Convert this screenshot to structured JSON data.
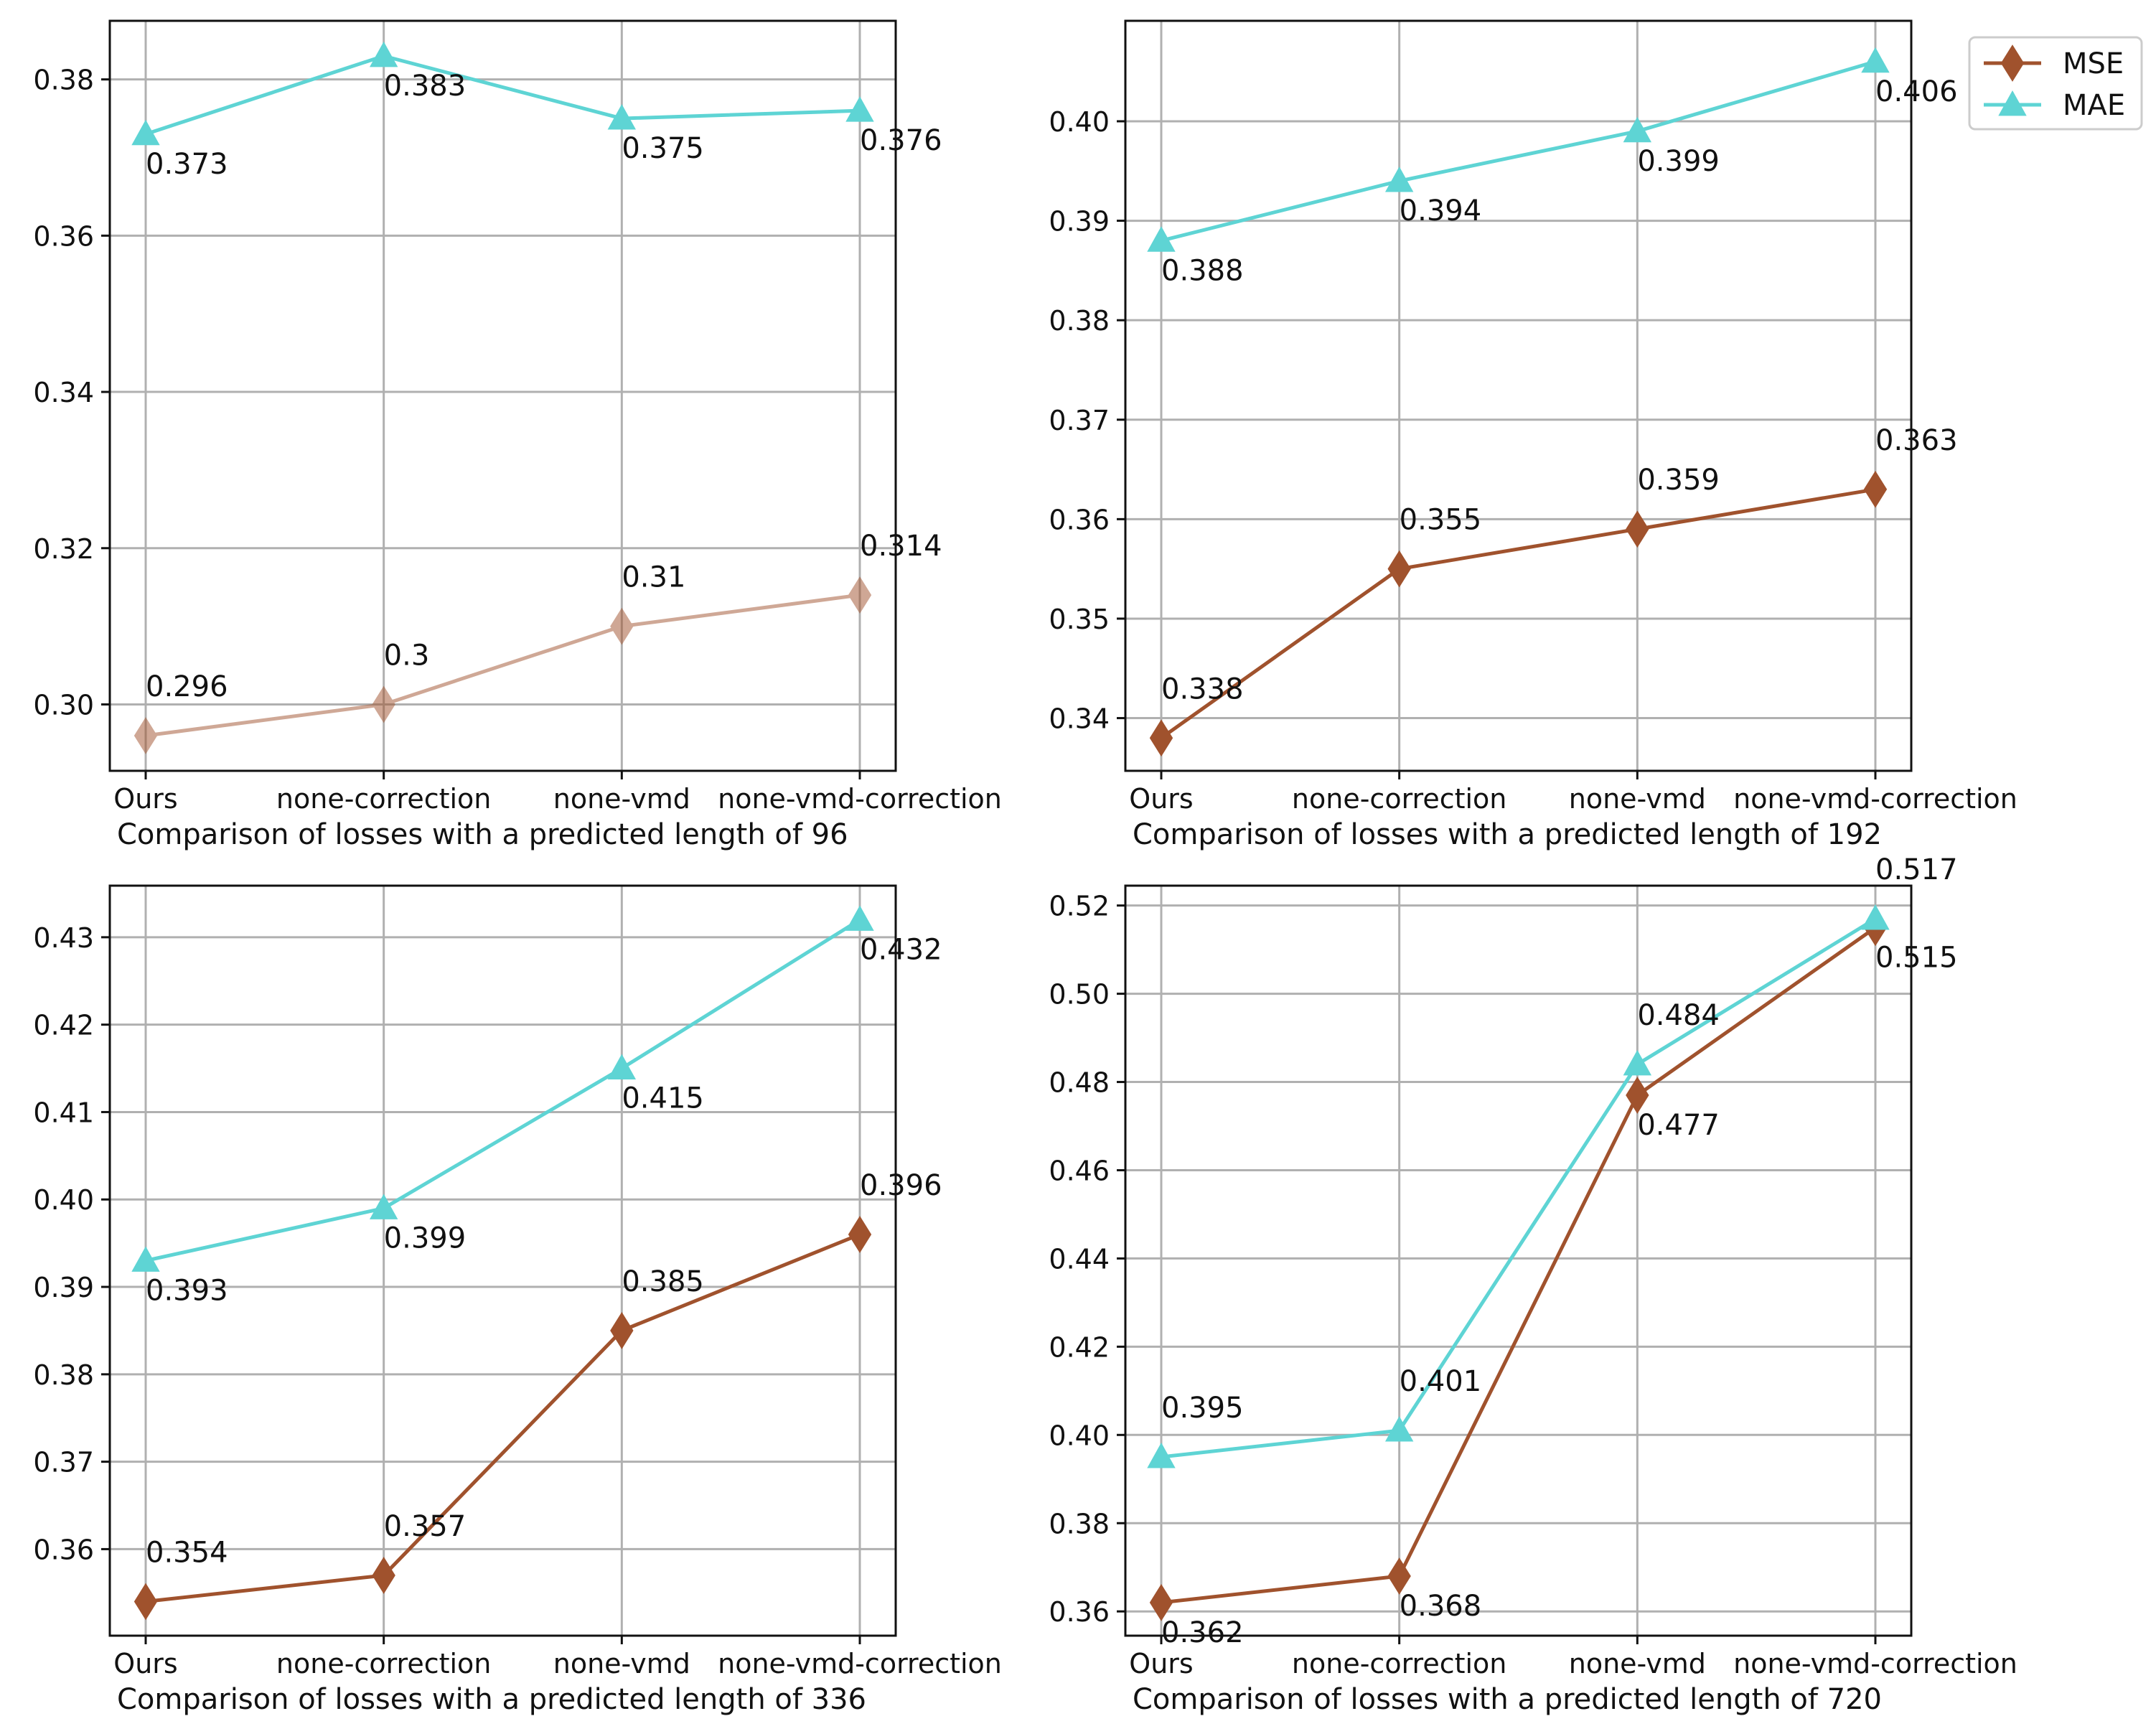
{
  "chart_data": [
    {
      "type": "line",
      "xlabel": "Comparison of losses with a predicted length of 96",
      "categories": [
        "Ours",
        "none-correction",
        "none-vmd",
        "none-vmd-correction"
      ],
      "ylim": [
        0.2915,
        0.3875
      ],
      "yticks": [
        0.3,
        0.32,
        0.34,
        0.36,
        0.38
      ],
      "ytick_labels": [
        "0.30",
        "0.32",
        "0.34",
        "0.36",
        "0.38"
      ],
      "series": [
        {
          "name": "MSE",
          "color": "#a0522d",
          "opacity": 0.5,
          "marker": "diamond",
          "values": [
            0.296,
            0.3,
            0.31,
            0.314
          ],
          "labels": [
            "0.296",
            "0.3",
            "0.31",
            "0.314"
          ],
          "label_pos": "above"
        },
        {
          "name": "MAE",
          "color": "#5ed4d4",
          "opacity": 1,
          "marker": "triangle",
          "values": [
            0.373,
            0.383,
            0.375,
            0.376
          ],
          "labels": [
            "0.373",
            "0.383",
            "0.375",
            "0.376"
          ],
          "label_pos": "below"
        }
      ]
    },
    {
      "type": "line",
      "xlabel": "Comparison of losses with a predicted length of 192",
      "categories": [
        "Ours",
        "none-correction",
        "none-vmd",
        "none-vmd-correction"
      ],
      "ylim": [
        0.3347,
        0.4101
      ],
      "yticks": [
        0.34,
        0.35,
        0.36,
        0.37,
        0.38,
        0.39,
        0.4
      ],
      "ytick_labels": [
        "0.34",
        "0.35",
        "0.36",
        "0.37",
        "0.38",
        "0.39",
        "0.40"
      ],
      "series": [
        {
          "name": "MSE",
          "color": "#a0522d",
          "opacity": 1,
          "marker": "diamond",
          "values": [
            0.338,
            0.355,
            0.359,
            0.363
          ],
          "labels": [
            "0.338",
            "0.355",
            "0.359",
            "0.363"
          ],
          "label_pos": "above"
        },
        {
          "name": "MAE",
          "color": "#5ed4d4",
          "opacity": 1,
          "marker": "triangle",
          "values": [
            0.388,
            0.394,
            0.399,
            0.406
          ],
          "labels": [
            "0.388",
            "0.394",
            "0.399",
            "0.406"
          ],
          "label_pos": "below"
        }
      ]
    },
    {
      "type": "line",
      "xlabel": "Comparison of losses with a predicted length of 336",
      "categories": [
        "Ours",
        "none-correction",
        "none-vmd",
        "none-vmd-correction"
      ],
      "ylim": [
        0.3501,
        0.4359
      ],
      "yticks": [
        0.36,
        0.37,
        0.38,
        0.39,
        0.4,
        0.41,
        0.42,
        0.43
      ],
      "ytick_labels": [
        "0.36",
        "0.37",
        "0.38",
        "0.39",
        "0.40",
        "0.41",
        "0.42",
        "0.43"
      ],
      "series": [
        {
          "name": "MSE",
          "color": "#a0522d",
          "opacity": 1,
          "marker": "diamond",
          "values": [
            0.354,
            0.357,
            0.385,
            0.396
          ],
          "labels": [
            "0.354",
            "0.357",
            "0.385",
            "0.396"
          ],
          "label_pos": "above"
        },
        {
          "name": "MAE",
          "color": "#5ed4d4",
          "opacity": 1,
          "marker": "triangle",
          "values": [
            0.393,
            0.399,
            0.415,
            0.432
          ],
          "labels": [
            "0.393",
            "0.399",
            "0.415",
            "0.432"
          ],
          "label_pos": "below"
        }
      ]
    },
    {
      "type": "line",
      "xlabel": "Comparison of losses with a predicted length of 720",
      "categories": [
        "Ours",
        "none-correction",
        "none-vmd",
        "none-vmd-correction"
      ],
      "ylim": [
        0.3545,
        0.5245
      ],
      "yticks": [
        0.36,
        0.38,
        0.4,
        0.42,
        0.44,
        0.46,
        0.48,
        0.5,
        0.52
      ],
      "ytick_labels": [
        "0.36",
        "0.38",
        "0.40",
        "0.42",
        "0.44",
        "0.46",
        "0.48",
        "0.50",
        "0.52"
      ],
      "series": [
        {
          "name": "MSE",
          "color": "#a0522d",
          "opacity": 1,
          "marker": "diamond",
          "values": [
            0.362,
            0.368,
            0.477,
            0.515
          ],
          "labels": [
            "0.362",
            "0.368",
            "0.477",
            "0.515"
          ],
          "label_pos": "below"
        },
        {
          "name": "MAE",
          "color": "#5ed4d4",
          "opacity": 1,
          "marker": "triangle",
          "values": [
            0.395,
            0.401,
            0.484,
            0.517
          ],
          "labels": [
            "0.395",
            "0.401",
            "0.484",
            "0.517"
          ],
          "label_pos": "above"
        }
      ]
    }
  ],
  "legend": {
    "location": "upper-right",
    "entries": [
      {
        "name": "MSE",
        "color": "#a0522d",
        "marker": "diamond"
      },
      {
        "name": "MAE",
        "color": "#5ed4d4",
        "marker": "triangle"
      }
    ]
  }
}
